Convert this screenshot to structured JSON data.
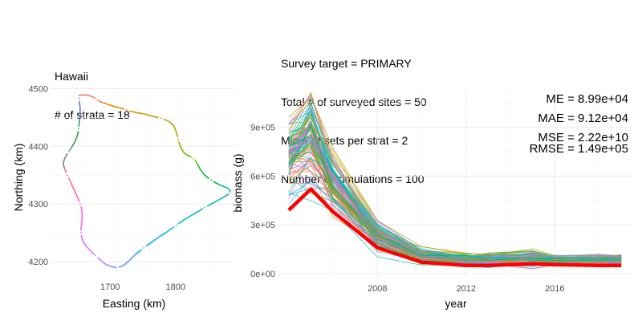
{
  "chart_data": [
    {
      "type": "map",
      "title_lines": [
        "Hawaii",
        "# of strata = 18"
      ],
      "xlabel": "Easting (km)",
      "ylabel": "Northing (km)",
      "xlim": [
        1610,
        1890
      ],
      "ylim": [
        4178,
        4506
      ],
      "x_ticks": [
        1700,
        1800
      ],
      "y_ticks": [
        4200,
        4300,
        4400,
        4500
      ],
      "grid": true,
      "coastline": [
        [
          1652,
          4488
        ],
        [
          1660,
          4489
        ],
        [
          1668,
          4488
        ],
        [
          1676,
          4484
        ],
        [
          1682,
          4479
        ],
        [
          1690,
          4475
        ],
        [
          1700,
          4471
        ],
        [
          1710,
          4468
        ],
        [
          1720,
          4465
        ],
        [
          1730,
          4461
        ],
        [
          1742,
          4458
        ],
        [
          1752,
          4456
        ],
        [
          1762,
          4453
        ],
        [
          1772,
          4450
        ],
        [
          1782,
          4447
        ],
        [
          1790,
          4443
        ],
        [
          1797,
          4436
        ],
        [
          1800,
          4428
        ],
        [
          1803,
          4418
        ],
        [
          1805,
          4408
        ],
        [
          1808,
          4398
        ],
        [
          1812,
          4390
        ],
        [
          1817,
          4385
        ],
        [
          1823,
          4382
        ],
        [
          1830,
          4376
        ],
        [
          1834,
          4368
        ],
        [
          1838,
          4360
        ],
        [
          1843,
          4352
        ],
        [
          1850,
          4345
        ],
        [
          1858,
          4339
        ],
        [
          1866,
          4334
        ],
        [
          1874,
          4330
        ],
        [
          1881,
          4327
        ],
        [
          1884,
          4322
        ],
        [
          1881,
          4317
        ],
        [
          1874,
          4312
        ],
        [
          1866,
          4307
        ],
        [
          1858,
          4302
        ],
        [
          1850,
          4297
        ],
        [
          1842,
          4292
        ],
        [
          1833,
          4286
        ],
        [
          1824,
          4280
        ],
        [
          1815,
          4274
        ],
        [
          1806,
          4267
        ],
        [
          1796,
          4259
        ],
        [
          1786,
          4251
        ],
        [
          1776,
          4244
        ],
        [
          1766,
          4236
        ],
        [
          1756,
          4228
        ],
        [
          1747,
          4220
        ],
        [
          1738,
          4212
        ],
        [
          1730,
          4203
        ],
        [
          1722,
          4195
        ],
        [
          1715,
          4191
        ],
        [
          1708,
          4190
        ],
        [
          1701,
          4192
        ],
        [
          1694,
          4195
        ],
        [
          1688,
          4200
        ],
        [
          1682,
          4206
        ],
        [
          1676,
          4212
        ],
        [
          1670,
          4219
        ],
        [
          1664,
          4226
        ],
        [
          1659,
          4234
        ],
        [
          1656,
          4244
        ],
        [
          1655,
          4254
        ],
        [
          1656,
          4264
        ],
        [
          1657,
          4274
        ],
        [
          1657,
          4284
        ],
        [
          1656,
          4294
        ],
        [
          1653,
          4304
        ],
        [
          1649,
          4314
        ],
        [
          1645,
          4324
        ],
        [
          1641,
          4334
        ],
        [
          1637,
          4344
        ],
        [
          1633,
          4354
        ],
        [
          1630,
          4362
        ],
        [
          1628,
          4370
        ],
        [
          1630,
          4378
        ],
        [
          1634,
          4386
        ],
        [
          1638,
          4393
        ],
        [
          1642,
          4400
        ],
        [
          1646,
          4408
        ],
        [
          1649,
          4416
        ],
        [
          1651,
          4424
        ],
        [
          1652,
          4434
        ],
        [
          1653,
          4445
        ],
        [
          1654,
          4456
        ],
        [
          1654,
          4466
        ],
        [
          1653,
          4476
        ],
        [
          1652,
          4488
        ]
      ],
      "stratum_colors": [
        "#f8766d",
        "#e58700",
        "#c99800",
        "#a3a500",
        "#6bb100",
        "#00ba38",
        "#00bf7d",
        "#00c0af",
        "#00bcd8",
        "#00b0f6",
        "#619cff",
        "#b983ff",
        "#e76bf3",
        "#fd61d1",
        "#ff67a4",
        "#7f7f7f",
        "#2f9e44",
        "#5b7fd1"
      ]
    },
    {
      "type": "line",
      "title_lines": [
        "Survey target = PRIMARY",
        "Total # of surveyed sites = 50",
        "Min # of sets per strat = 2",
        "Number of simulations = 100"
      ],
      "xlabel": "year",
      "ylabel": "biomass (g)",
      "xlim": [
        2003.5,
        2019.5
      ],
      "ylim": [
        -20000,
        1150000
      ],
      "x_ticks": [
        2008,
        2012,
        2016
      ],
      "x_tick_labels": [
        "2008",
        "2012",
        "2016"
      ],
      "y_ticks": [
        0,
        300000,
        600000,
        900000
      ],
      "y_tick_labels": [
        "0e+00",
        "3e+05",
        "6e+05",
        "9e+05"
      ],
      "grid": true,
      "years": [
        2004,
        2005,
        2006,
        2008,
        2010,
        2012,
        2013,
        2015,
        2016,
        2018,
        2019
      ],
      "truth": {
        "color": "#ff0000",
        "values": [
          390000,
          520000,
          380000,
          160000,
          70000,
          50000,
          50000,
          60000,
          55000,
          50000,
          50000
        ]
      },
      "simulations": {
        "count": 100,
        "mean": [
          700000,
          820000,
          560000,
          230000,
          110000,
          85000,
          85000,
          90000,
          80000,
          85000,
          85000
        ],
        "spread": [
          140000,
          160000,
          100000,
          50000,
          25000,
          18000,
          18000,
          30000,
          18000,
          18000,
          18000
        ],
        "color_palette": [
          "#f8766d",
          "#e58700",
          "#c99800",
          "#a3a500",
          "#6bb100",
          "#00ba38",
          "#00bf7d",
          "#00c0af",
          "#00bcd8",
          "#00b0f6",
          "#619cff",
          "#b983ff",
          "#e76bf3",
          "#fd61d1",
          "#ff67a4"
        ]
      },
      "annotations": [
        "ME = 8.99e+04",
        "MAE = 9.12e+04",
        "MSE = 2.22e+10",
        "RMSE = 1.49e+05"
      ]
    }
  ]
}
